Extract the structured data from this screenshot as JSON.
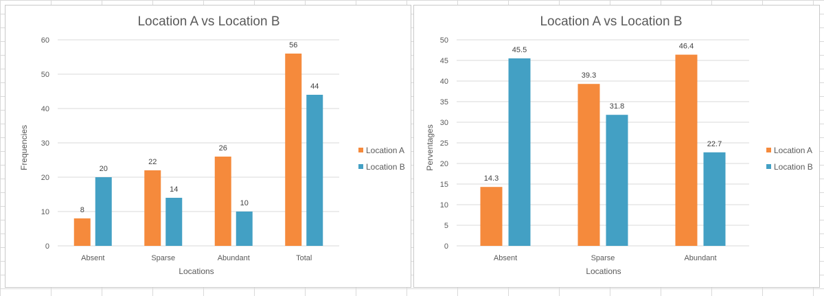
{
  "colors": {
    "location_a": "#F58A3C",
    "location_b": "#43A0C4"
  },
  "chart_data": [
    {
      "type": "bar",
      "title": "Location A vs Location B",
      "xlabel": "Locations",
      "ylabel": "Frequencies",
      "categories": [
        "Absent",
        "Sparse",
        "Abundant",
        "Total"
      ],
      "series": [
        {
          "name": "Location A",
          "values": [
            8,
            22,
            26,
            56
          ],
          "labels": [
            "8",
            "22",
            "26",
            "56"
          ]
        },
        {
          "name": "Location B",
          "values": [
            20,
            14,
            10,
            44
          ],
          "labels": [
            "20",
            "14",
            "10",
            "44"
          ]
        }
      ],
      "ylim": [
        0,
        60
      ],
      "yticks": [
        "0",
        "10",
        "20",
        "30",
        "40",
        "50",
        "60"
      ],
      "grid": true,
      "legend": "right"
    },
    {
      "type": "bar",
      "title": "Location A vs Location B",
      "xlabel": "Locations",
      "ylabel": "Perventages",
      "categories": [
        "Absent",
        "Sparse",
        "Abundant"
      ],
      "series": [
        {
          "name": "Location A",
          "values": [
            14.3,
            39.3,
            46.4
          ],
          "labels": [
            "14.3",
            "39.3",
            "46.4"
          ]
        },
        {
          "name": "Location B",
          "values": [
            45.5,
            31.8,
            22.7
          ],
          "labels": [
            "45.5",
            "31.8",
            "22.7"
          ]
        }
      ],
      "ylim": [
        0,
        50
      ],
      "yticks": [
        "0",
        "5",
        "10",
        "15",
        "20",
        "25",
        "30",
        "35",
        "40",
        "45",
        "50"
      ],
      "grid": true,
      "legend": "right"
    }
  ]
}
